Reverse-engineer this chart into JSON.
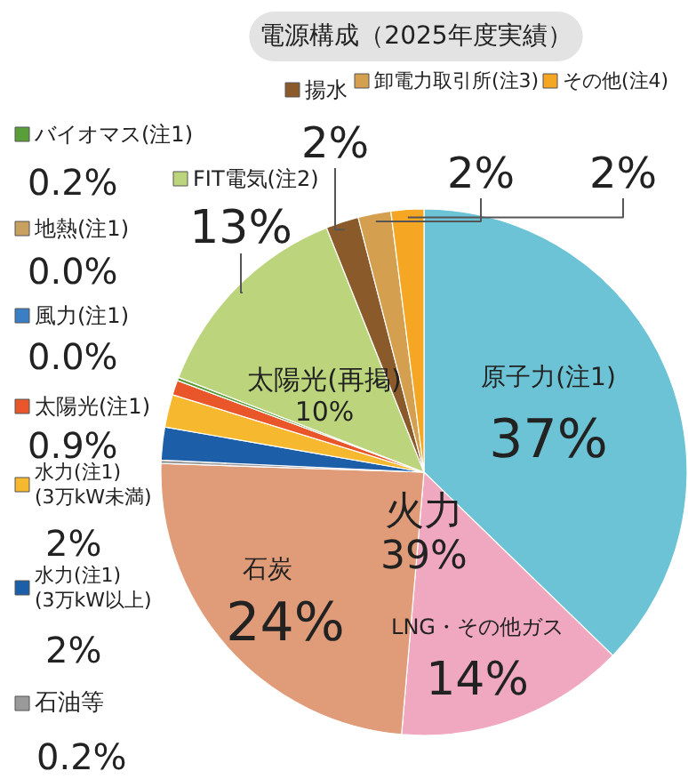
{
  "chart_data": {
    "type": "pie",
    "title": "電源構成（2025年度実績）",
    "categories": [
      "原子力(注1)",
      "LNG・その他ガス",
      "石炭",
      "石油等",
      "水力(注1)\n(3万kW以上)",
      "水力(注1)\n(3万kW未満)",
      "太陽光(注1)",
      "風力(注1)",
      "地熱(注1)",
      "バイオマス(注1)",
      "FIT電気(注2)",
      "揚水",
      "卸電力取引所(注3)",
      "その他(注4)"
    ],
    "values": [
      37,
      14,
      24,
      0.2,
      2,
      2,
      0.9,
      0.0,
      0.0,
      0.2,
      13,
      2,
      2,
      2
    ],
    "value_labels": [
      "37%",
      "14%",
      "24%",
      "0.2%",
      "2%",
      "2%",
      "0.9%",
      "0.0%",
      "0.0%",
      "0.2%",
      "13%",
      "2%",
      "2%",
      "2%"
    ],
    "colors": [
      "#6cc3d5",
      "#f0a8c0",
      "#e09c78",
      "#9a9a9a",
      "#1d5ea8",
      "#f5b82e",
      "#e8562a",
      "#3a7fc4",
      "#c8a060",
      "#5a9e3a",
      "#bcd57c",
      "#8b5a2b",
      "#d4a050",
      "#f5a623"
    ],
    "legend": "left",
    "annotations": [
      "火力\n39%",
      "太陽光(再掲)\n10%"
    ]
  }
}
